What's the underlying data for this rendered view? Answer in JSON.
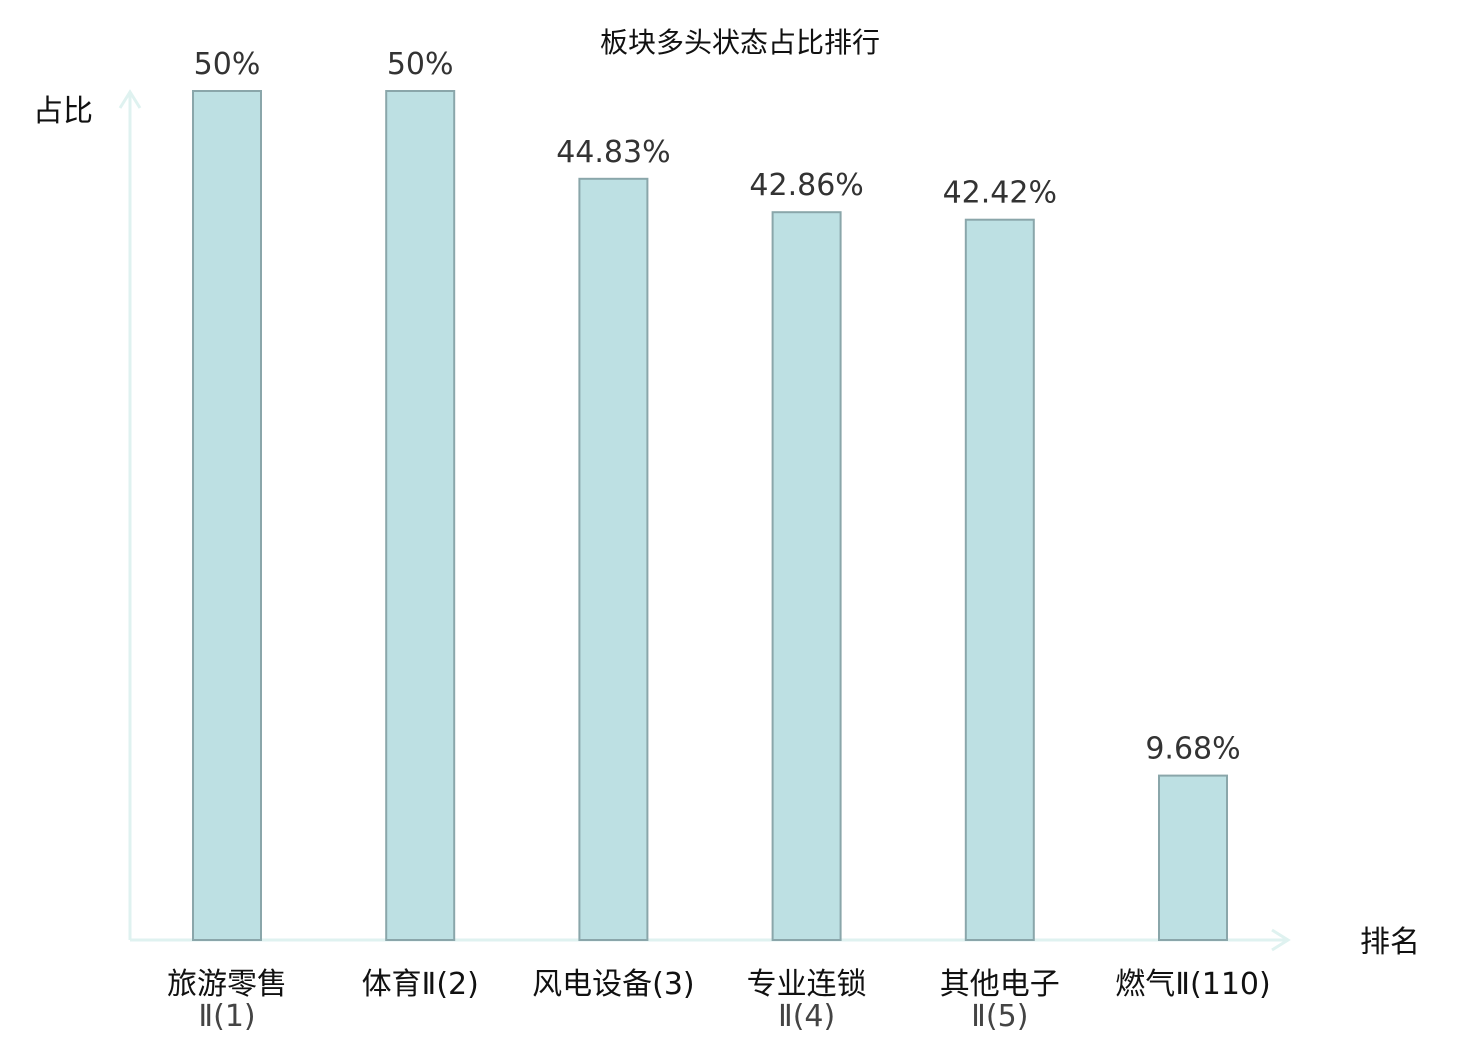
{
  "chart_data": {
    "type": "bar",
    "title": "板块多头状态占比排行",
    "ylabel": "占比",
    "xlabel": "排名",
    "ylim": [
      0,
      50
    ],
    "grid": false,
    "colors": {
      "bar_fill": "#bde0e3",
      "bar_stroke": "#8aa6aa",
      "axis": "#dff2f0",
      "highlight_text": "#e02020",
      "value_text": "#333333",
      "label_text": "#111111"
    },
    "categories": [
      {
        "line1": "旅游零售",
        "line2": "Ⅱ(1)",
        "highlight": false
      },
      {
        "line1": "体育Ⅱ(2)",
        "line2": "",
        "highlight": false
      },
      {
        "line1": "风电设备(3)",
        "line2": "",
        "highlight": false
      },
      {
        "line1": "专业连锁",
        "line2": "Ⅱ(4)",
        "highlight": false
      },
      {
        "line1": "其他电子",
        "line2": "Ⅱ(5)",
        "highlight": false
      },
      {
        "line1": "燃气Ⅱ(110)",
        "line2": "",
        "highlight": true
      }
    ],
    "values": [
      50,
      50,
      44.83,
      42.86,
      42.42,
      9.68
    ],
    "value_labels": [
      "50%",
      "50%",
      "44.83%",
      "42.86%",
      "42.42%",
      "9.68%"
    ]
  }
}
